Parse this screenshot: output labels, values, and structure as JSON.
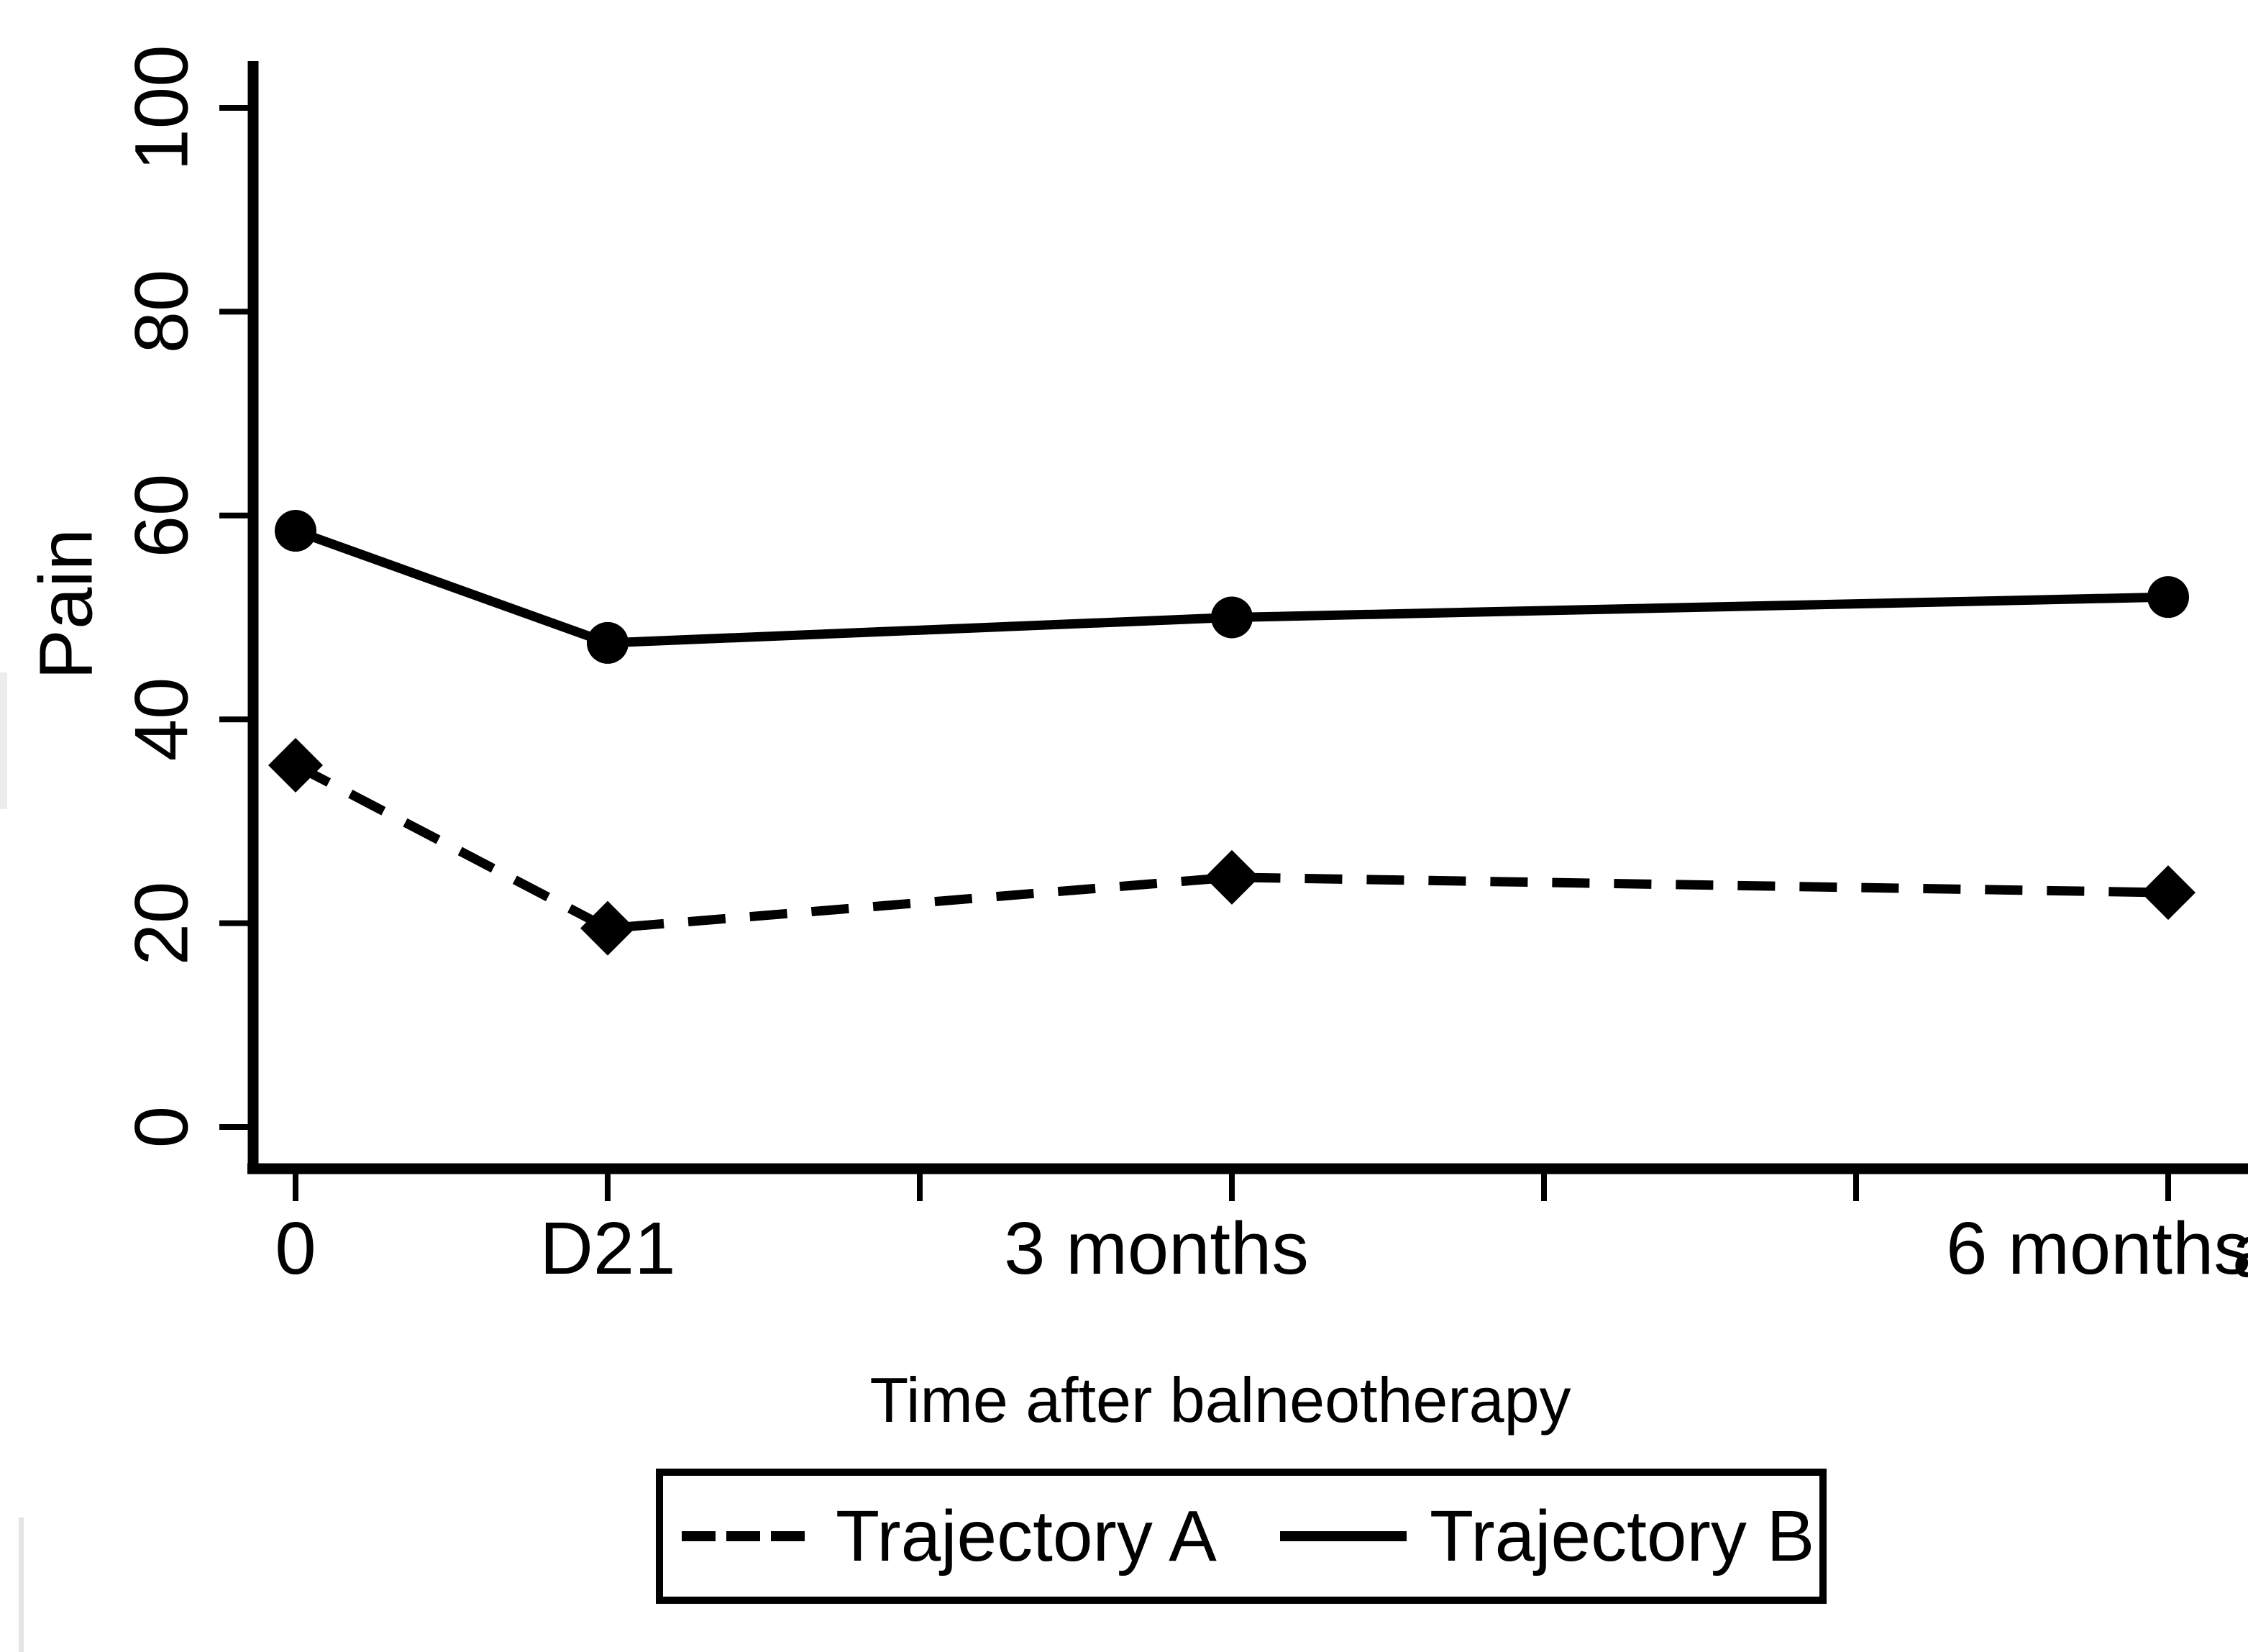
{
  "figure": {
    "background_color": "#ffffff",
    "ink_color": "#000000"
  },
  "chart_data": {
    "type": "line",
    "title": "",
    "xlabel": "Time after balneotherapy",
    "ylabel": "Pain",
    "categories": [
      "0",
      "D21",
      "3 months",
      "6 months"
    ],
    "ylim": [
      0,
      100
    ],
    "yticks": [
      0,
      20,
      40,
      60,
      80,
      100
    ],
    "x_ticks": [
      {
        "label": "0"
      },
      {
        "label": "D21"
      },
      {
        "label": ""
      },
      {
        "label": "3 months"
      },
      {
        "label": ""
      },
      {
        "label": ""
      },
      {
        "label": "6 months"
      }
    ],
    "data_tick_indices": [
      0,
      1,
      3,
      6
    ],
    "grid": false,
    "legend_position": "bottom",
    "series": [
      {
        "name": "Trajectory A",
        "line_style": "dashed",
        "marker": "diamond",
        "color": "#000000",
        "values": [
          35.5,
          19.5,
          24.5,
          23
        ]
      },
      {
        "name": "Trajectory B",
        "line_style": "solid",
        "marker": "circle",
        "color": "#000000",
        "values": [
          58.5,
          47.5,
          50,
          52
        ]
      }
    ]
  }
}
